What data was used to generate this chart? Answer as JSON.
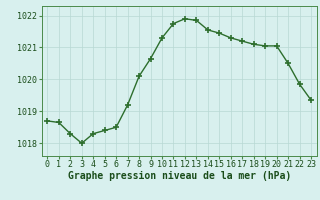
{
  "hours": [
    0,
    1,
    2,
    3,
    4,
    5,
    6,
    7,
    8,
    9,
    10,
    11,
    12,
    13,
    14,
    15,
    16,
    17,
    18,
    19,
    20,
    21,
    22,
    23
  ],
  "pressure": [
    1018.7,
    1018.65,
    1018.3,
    1018.0,
    1018.3,
    1018.4,
    1018.5,
    1019.2,
    1020.1,
    1020.65,
    1021.3,
    1021.75,
    1021.9,
    1021.85,
    1021.55,
    1021.45,
    1021.3,
    1021.2,
    1021.1,
    1021.05,
    1021.05,
    1020.5,
    1019.85,
    1019.35
  ],
  "line_color": "#2d6e2d",
  "marker": "+",
  "markersize": 4,
  "markeredgewidth": 1.2,
  "linewidth": 1.0,
  "background_color": "#d8f0ee",
  "grid_color": "#b8d8d4",
  "xlabel": "Graphe pression niveau de la mer (hPa)",
  "xlabel_fontsize": 7.0,
  "tick_fontsize": 6.0,
  "ylim": [
    1017.6,
    1022.3
  ],
  "yticks": [
    1018,
    1019,
    1020,
    1021,
    1022
  ],
  "title_color": "#1a4d1a"
}
